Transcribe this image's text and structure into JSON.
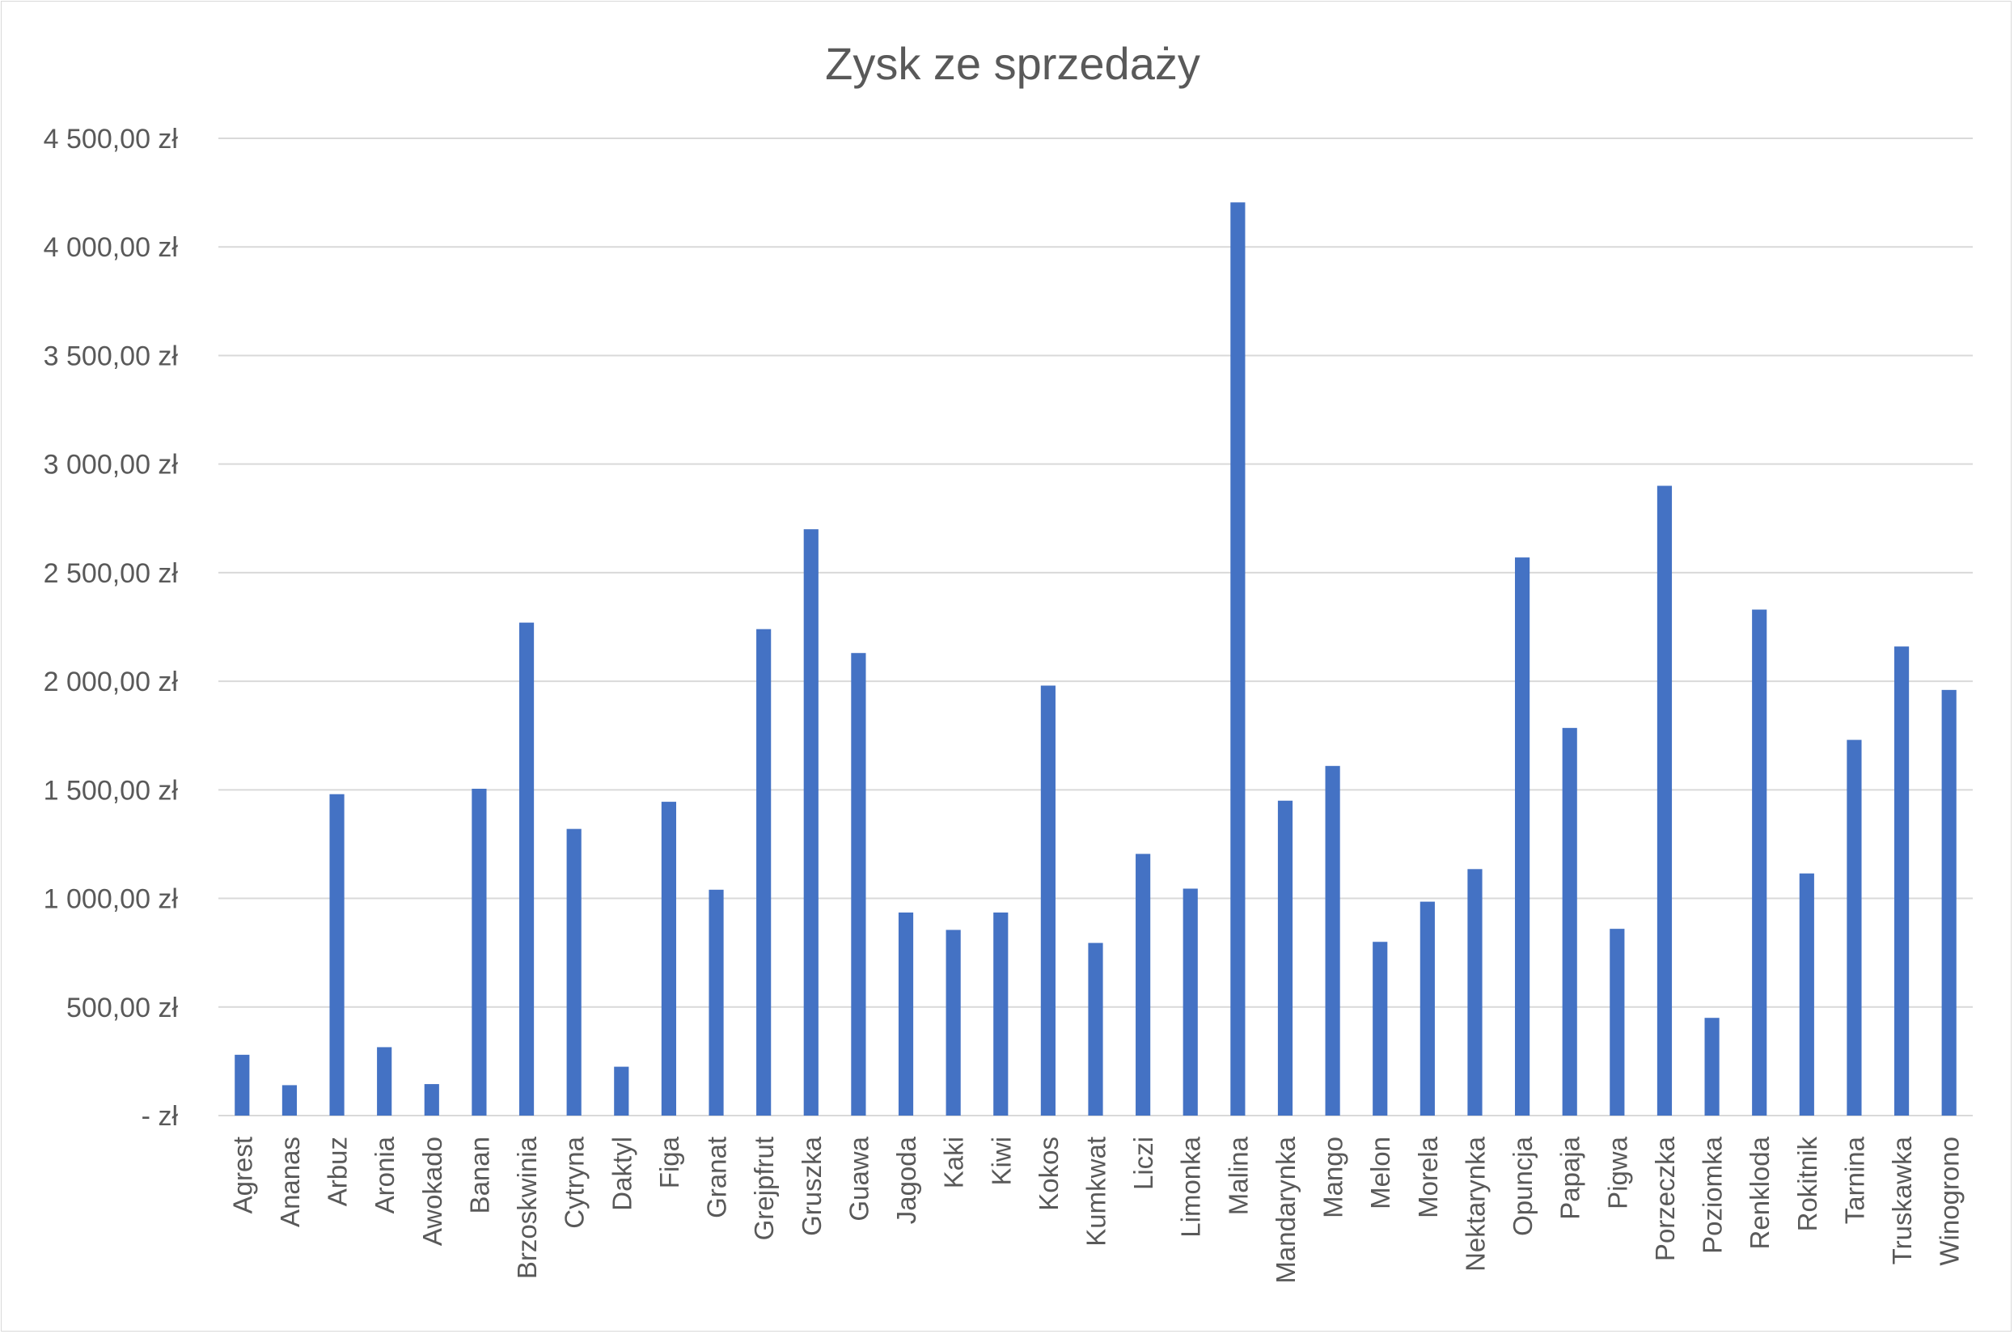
{
  "chart_data": {
    "type": "bar",
    "title": "Zysk ze sprzedaży",
    "xlabel": "",
    "ylabel": "",
    "ylim": [
      0,
      4500
    ],
    "yticks": [
      0,
      500,
      1000,
      1500,
      2000,
      2500,
      3000,
      3500,
      4000,
      4500
    ],
    "ytick_labels": [
      "-   zł",
      "500,00 zł",
      "1 000,00 zł",
      "1 500,00 zł",
      "2 000,00 zł",
      "2 500,00 zł",
      "3 000,00 zł",
      "3 500,00 zł",
      "4 000,00 zł",
      "4 500,00 zł"
    ],
    "grid": true,
    "legend": "none",
    "bar_color": "#4472c4",
    "categories": [
      "Agrest",
      "Ananas",
      "Arbuz",
      "Aronia",
      "Awokado",
      "Banan",
      "Brzoskwinia",
      "Cytryna",
      "Daktyl",
      "Figa",
      "Granat",
      "Grejpfrut",
      "Gruszka",
      "Guawa",
      "Jagoda",
      "Kaki",
      "Kiwi",
      "Kokos",
      "Kumkwat",
      "Liczi",
      "Limonka",
      "Malina",
      "Mandarynka",
      "Mango",
      "Melon",
      "Morela",
      "Nektarynka",
      "Opuncja",
      "Papaja",
      "Pigwa",
      "Porzeczka",
      "Poziomka",
      "Renkloda",
      "Rokitnik",
      "Tarnina",
      "Truskawka",
      "Winogrono"
    ],
    "values": [
      280,
      140,
      1480,
      315,
      145,
      1505,
      2270,
      1320,
      225,
      1445,
      1040,
      2240,
      2700,
      2130,
      935,
      855,
      935,
      1980,
      795,
      1205,
      1045,
      4205,
      1450,
      1610,
      800,
      985,
      1135,
      2570,
      1785,
      860,
      2900,
      450,
      2330,
      1115,
      1730,
      2160,
      1960
    ]
  }
}
